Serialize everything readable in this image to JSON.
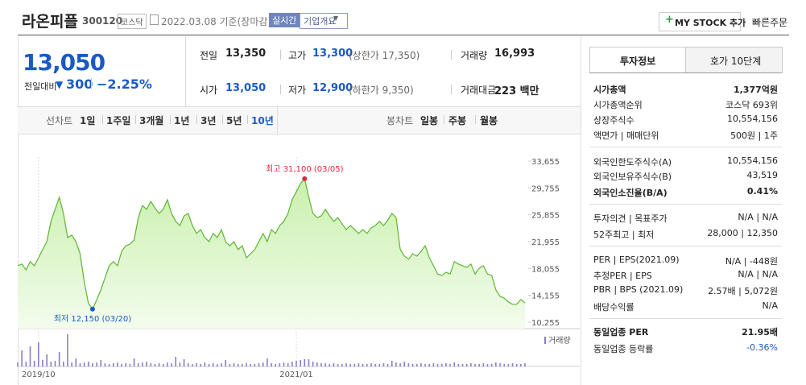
{
  "header": {
    "name": "라온피플",
    "code": "300120",
    "market": "코스닥",
    "date": "2022.03.08 기준(장마감)",
    "realtime": "실시간",
    "overview": "기업개요",
    "mystock": "MY STOCK 추가",
    "quick": "빠른주문"
  },
  "quote": {
    "price": "13,050",
    "change_label": "전일대비",
    "change": "300",
    "rate": "−2.25%"
  },
  "stats": [
    [
      {
        "label": "전일",
        "value": "13,350"
      },
      {
        "label": "고가",
        "value": "13,300",
        "extra": "(상한가 17,350)"
      },
      {
        "label": "거래량",
        "value": "16,993"
      }
    ],
    [
      {
        "label": "시가",
        "value": "13,050"
      },
      {
        "label": "저가",
        "value": "12,900",
        "extra": "(하한가 9,350)"
      },
      {
        "label": "거래대금",
        "value": "223 백만"
      }
    ]
  ],
  "tabs": {
    "line_label": "선차트",
    "line_items": [
      "1일",
      "1주일",
      "3개월",
      "1년",
      "3년",
      "5년",
      "10년"
    ],
    "candle_label": "봉차트",
    "candle_items": [
      "일봉",
      "주봉",
      "월봉"
    ]
  },
  "chart_data": {
    "type": "line",
    "color": "#5db630",
    "values": [
      18450,
      18700,
      17850,
      19050,
      18450,
      19600,
      20800,
      21950,
      24900,
      26650,
      28400,
      26050,
      22550,
      22900,
      21950,
      20200,
      16100,
      13000,
      12150,
      13500,
      14950,
      16700,
      18450,
      19050,
      18450,
      20550,
      21350,
      21600,
      22200,
      25450,
      27200,
      26650,
      27800,
      26850,
      26050,
      26650,
      28050,
      26050,
      24900,
      24300,
      25700,
      26050,
      24300,
      23150,
      23700,
      22550,
      21950,
      23150,
      22550,
      23700,
      21950,
      21350,
      21950,
      20800,
      21350,
      19600,
      20200,
      20800,
      21950,
      23150,
      21950,
      23700,
      23150,
      24300,
      24900,
      26050,
      28050,
      29200,
      30400,
      31100,
      28400,
      26050,
      25450,
      25700,
      26650,
      25700,
      24900,
      25450,
      24550,
      23700,
      24300,
      23700,
      23150,
      23700,
      23150,
      23950,
      24300,
      24900,
      24300,
      25100,
      26050,
      25450,
      20800,
      19850,
      19400,
      20200,
      19850,
      20550,
      21350,
      19600,
      18450,
      17250,
      17050,
      17500,
      17250,
      19050,
      18700,
      18450,
      18200,
      18700,
      17250,
      18100,
      18450,
      17250,
      17050,
      14950,
      14000,
      13750,
      13200,
      12850,
      12850,
      13550,
      13050
    ],
    "ylim": [
      10255,
      33655
    ],
    "yticks": [
      {
        "value": 33655,
        "label": "33,655"
      },
      {
        "value": 29755,
        "label": "29,755"
      },
      {
        "value": 25855,
        "label": "25,855"
      },
      {
        "value": 21955,
        "label": "21,955"
      },
      {
        "value": 18055,
        "label": "18,055"
      },
      {
        "value": 14155,
        "label": "14,155"
      },
      {
        "value": 10255,
        "label": "10,255"
      }
    ],
    "xticks": [
      {
        "value": 5,
        "label": "2019/10"
      },
      {
        "value": 67,
        "label": "2021/01"
      }
    ],
    "high_label": "최고 31,100 (03/05)",
    "low_label": "최저 12,150 (03/20)",
    "volume": {
      "name": "거래량",
      "color": "#8a7cc6",
      "values": [
        5,
        20,
        6,
        25,
        7,
        30,
        8,
        15,
        6,
        7,
        18,
        6,
        40,
        5,
        10,
        4,
        5,
        6,
        4,
        5,
        8,
        4,
        3,
        4,
        5,
        3,
        4,
        3,
        10,
        4,
        5,
        6,
        4,
        3,
        4,
        3,
        5,
        4,
        12,
        5,
        9,
        4,
        3,
        4,
        3,
        5,
        3,
        4,
        3,
        4,
        8,
        3,
        4,
        3,
        3,
        4,
        3,
        3,
        4,
        5,
        10,
        4,
        3,
        4,
        5,
        4,
        6,
        7,
        8,
        9,
        9,
        6,
        5,
        4,
        4,
        3,
        4,
        3,
        3,
        4,
        3,
        3,
        4,
        3,
        3,
        4,
        3,
        3,
        4,
        3,
        7,
        5,
        4,
        6,
        4,
        3,
        3,
        4,
        3,
        3,
        4,
        3,
        3,
        4,
        3,
        5,
        3,
        3,
        3,
        4,
        3,
        3,
        4,
        3,
        3,
        5,
        4,
        3,
        3,
        4,
        3,
        3,
        4
      ]
    }
  },
  "info": {
    "tabs": [
      "투자정보",
      "호가 10단계"
    ],
    "sections": [
      [
        {
          "label": "시가총액",
          "value": "1,377억원"
        },
        {
          "label": "시가총액순위",
          "value": "코스닥 693위"
        },
        {
          "label": "상장주식수",
          "value": "10,554,156"
        },
        {
          "label": "액면가 | 매매단위",
          "value": "500원 | 1주"
        }
      ],
      [
        {
          "label": "외국인한도주식수(A)",
          "value": "10,554,156"
        },
        {
          "label": "외국인보유주식수(B)",
          "value": "43,519"
        },
        {
          "label": "외국인소진율(B/A)",
          "value": "0.41%"
        }
      ],
      [
        {
          "label": "투자의견 | 목표주가",
          "value": "N/A | N/A"
        },
        {
          "label": "52주최고 | 최저",
          "value": "28,000 | 12,350"
        }
      ],
      [
        {
          "label": "PER | EPS(2021.09)",
          "value": "N/A | -448원"
        },
        {
          "label": "추정PER | EPS",
          "value": "N/A | N/A"
        },
        {
          "label": "PBR | BPS (2021.09)",
          "value": "2.57배 | 5,072원"
        },
        {
          "label": "배당수익률",
          "value": "N/A"
        }
      ],
      [
        {
          "label": "동일업종 PER",
          "value": "21.95배"
        },
        {
          "label": "동일업종 등락률",
          "value": "-0.36%"
        }
      ]
    ]
  }
}
